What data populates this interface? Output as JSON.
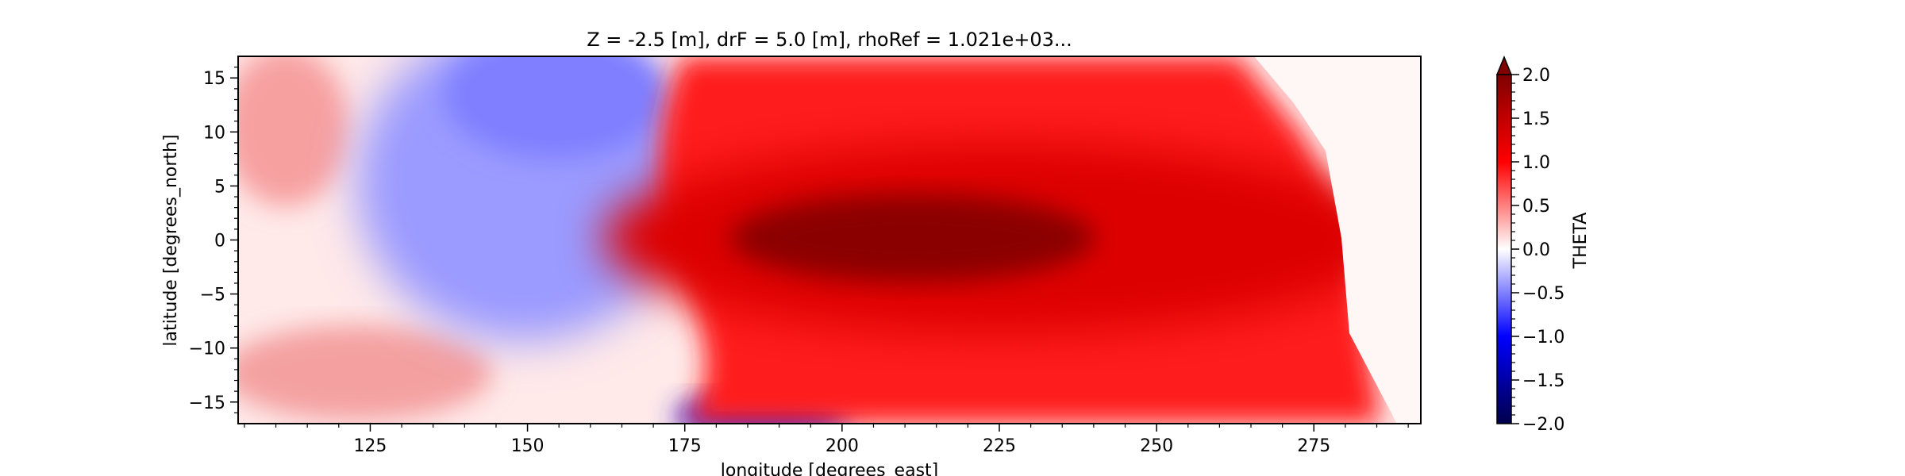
{
  "chart_data": {
    "type": "heatmap",
    "title": "Z = -2.5 [m], drF = 5.0 [m], rhoRef = 1.021e+03...",
    "xlabel": "longitude [degrees_east]",
    "ylabel": "latitude [degrees_north]",
    "xlim": [
      104,
      292
    ],
    "ylim": [
      -17,
      17
    ],
    "x_ticks": [
      125,
      150,
      175,
      200,
      225,
      250,
      275
    ],
    "y_ticks": [
      15,
      10,
      5,
      0,
      -5,
      -10,
      -15
    ],
    "x_tick_labels": [
      "125",
      "150",
      "175",
      "200",
      "225",
      "250",
      "275"
    ],
    "y_tick_labels": [
      "15",
      "10",
      "5",
      "0",
      "−5",
      "−10",
      "−15"
    ],
    "colorbar": {
      "label": "THETA",
      "vmin": -2.0,
      "vmax": 2.0,
      "colormap": "seismic",
      "extend": "max",
      "ticks": [
        2.0,
        1.5,
        1.0,
        0.5,
        0.0,
        -0.5,
        -1.0,
        -1.5,
        -2.0
      ],
      "tick_labels": [
        "2.0",
        "1.5",
        "1.0",
        "0.5",
        "0.0",
        "−0.5",
        "−1.0",
        "−1.5",
        "−2.0"
      ]
    },
    "field_features": [
      {
        "feature": "warm tongue core",
        "lon": 205,
        "lat": -1,
        "value": 2.0
      },
      {
        "feature": "eastern warm region",
        "lon": 260,
        "lat": 0,
        "value": 1.5
      },
      {
        "feature": "cool pool",
        "lon": 160,
        "lat": 10,
        "value": -0.6
      },
      {
        "feature": "cold patch",
        "lon": 190,
        "lat": -16,
        "value": -1.2
      },
      {
        "feature": "western warm patch",
        "lon": 110,
        "lat": 14,
        "value": 0.5
      }
    ]
  }
}
